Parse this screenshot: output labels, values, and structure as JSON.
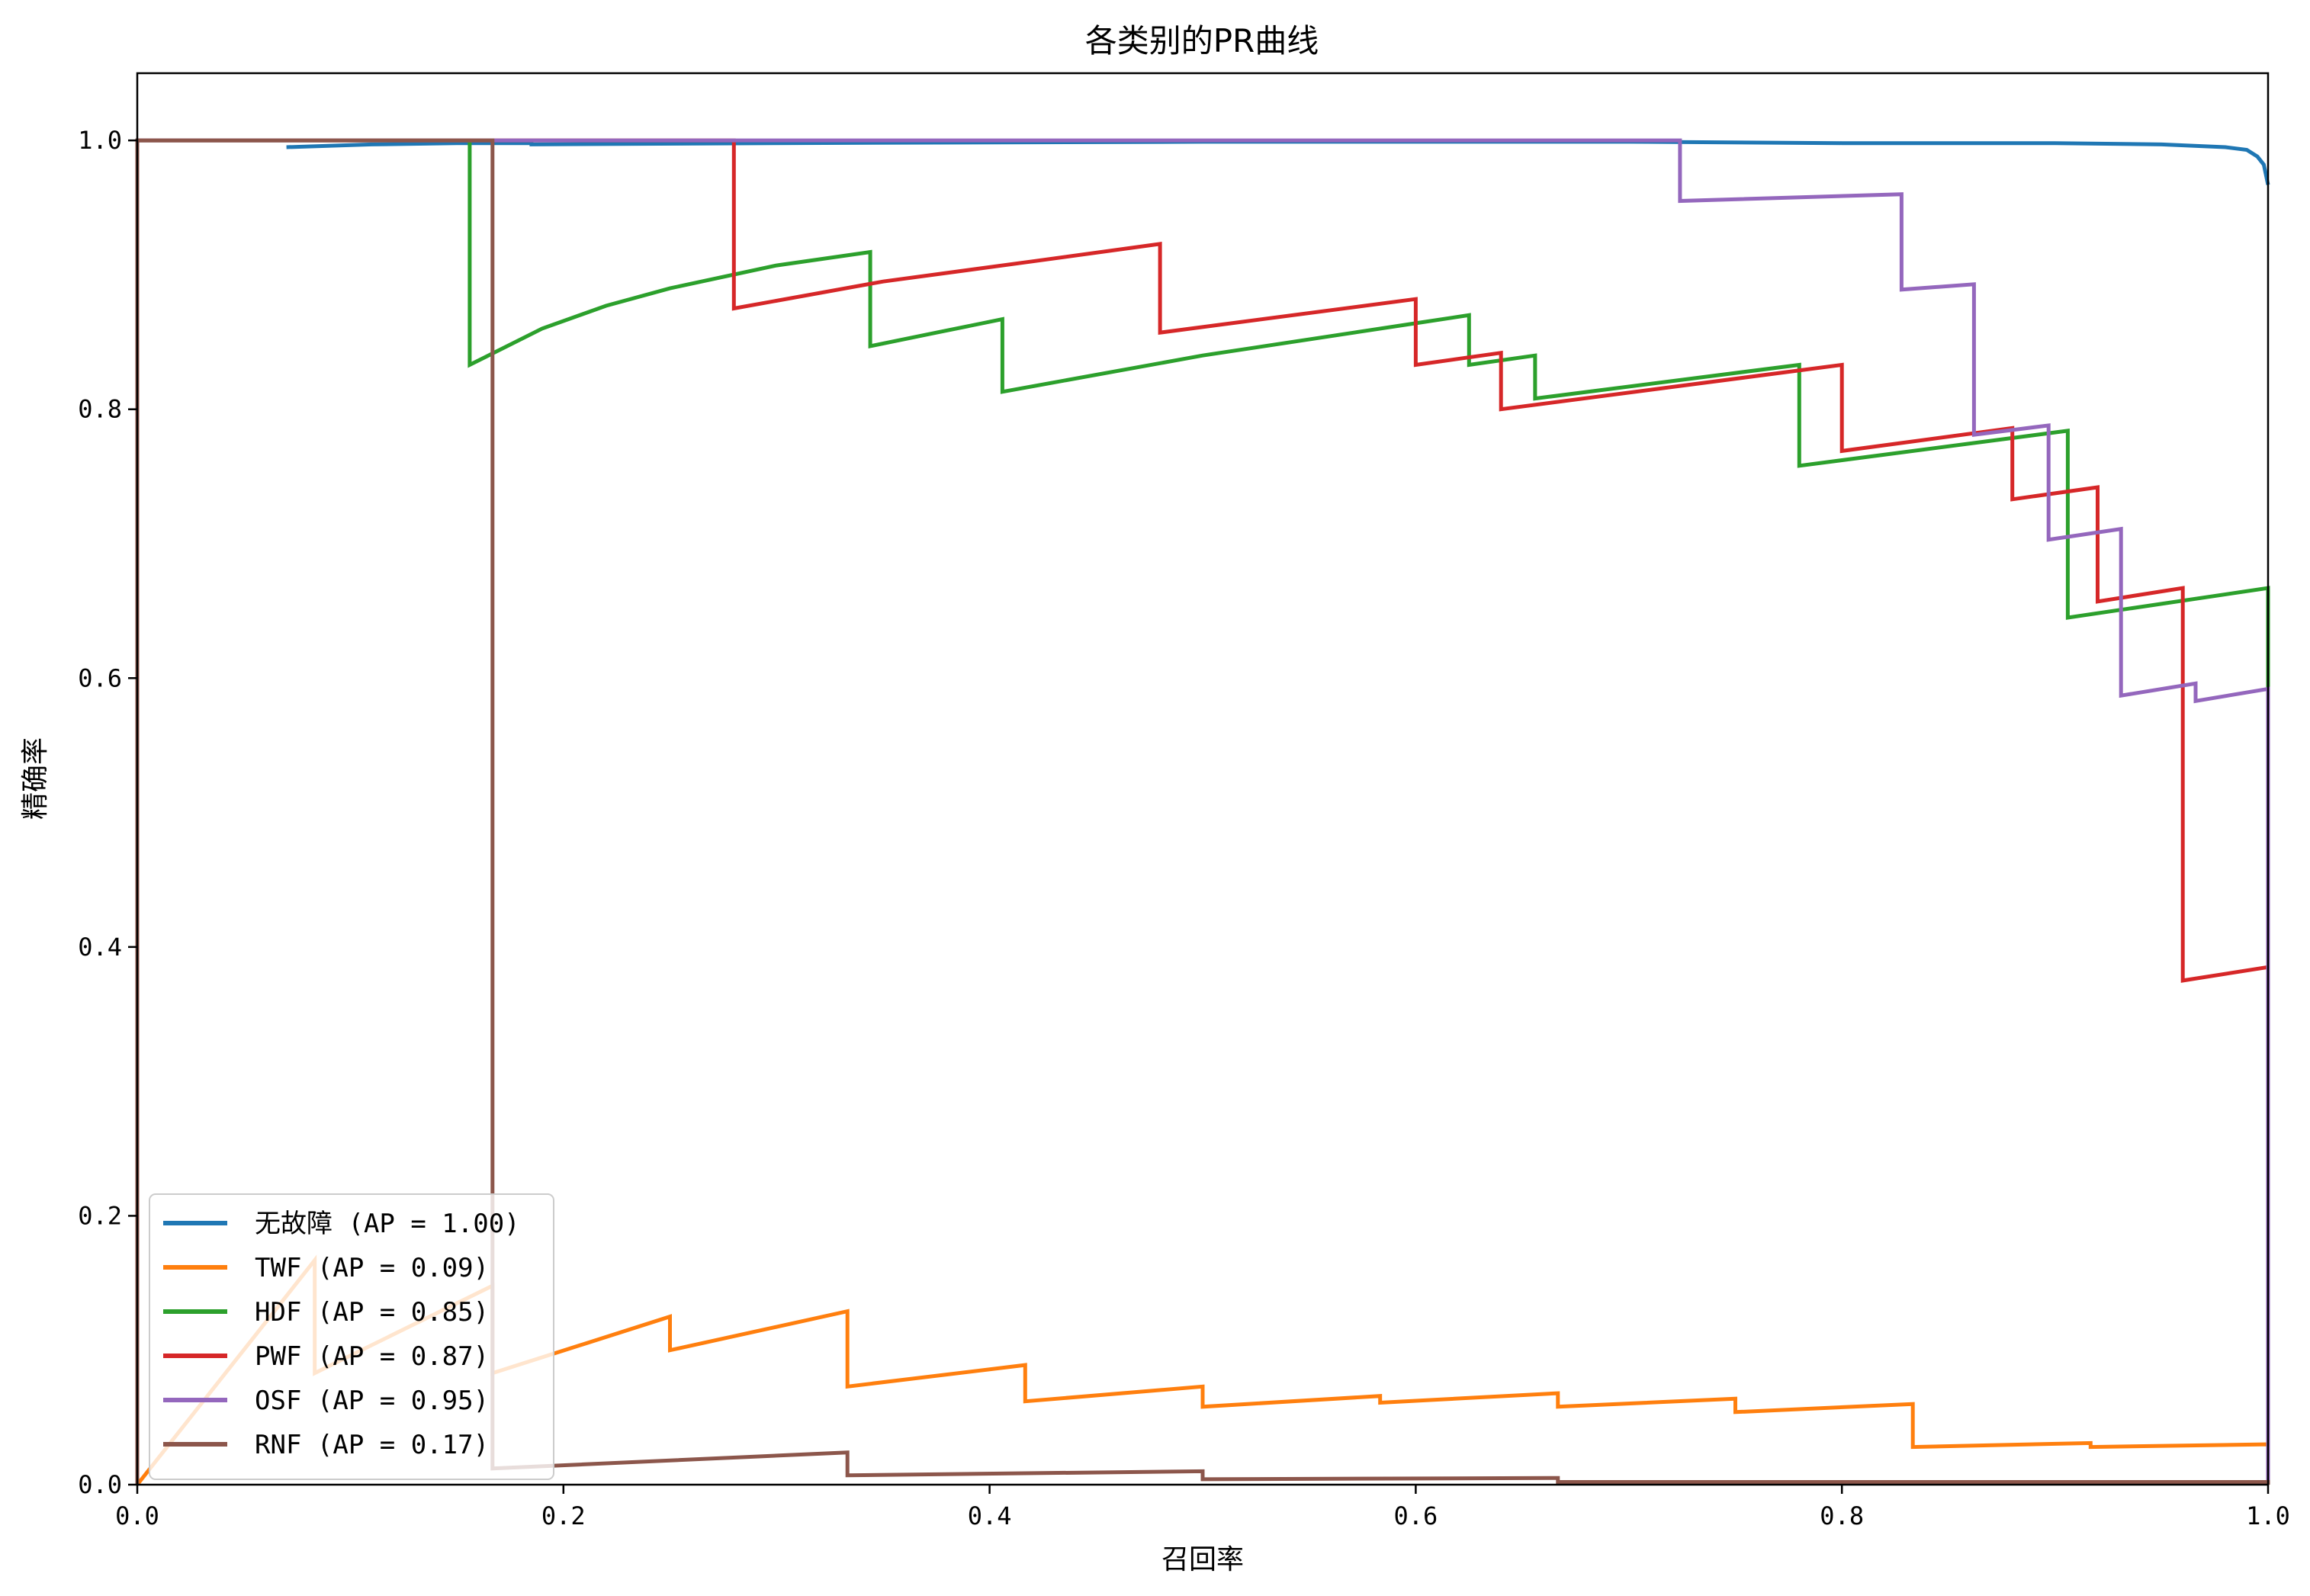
{
  "chart_data": {
    "type": "line",
    "title": "各类别的PR曲线",
    "xlabel": "召回率",
    "ylabel": "精确率",
    "xlim": [
      0.0,
      1.0
    ],
    "ylim": [
      0.0,
      1.05
    ],
    "xticks": [
      "0.0",
      "0.2",
      "0.4",
      "0.6",
      "0.8",
      "1.0"
    ],
    "yticks": [
      "0.0",
      "0.2",
      "0.4",
      "0.6",
      "0.8",
      "1.0"
    ],
    "grid": false,
    "legend_position": "lower-left",
    "series": [
      {
        "name": "无故障 (AP = 1.00)",
        "color": "#1f77b4",
        "x": [
          0.07,
          0.11,
          0.15,
          0.185,
          0.185,
          0.3,
          0.5,
          0.55,
          0.7,
          0.8,
          0.9,
          0.95,
          0.98,
          0.99,
          0.995,
          0.998,
          1.0
        ],
        "y": [
          0.995,
          0.997,
          0.998,
          0.998,
          0.997,
          0.998,
          0.999,
          0.999,
          0.999,
          0.998,
          0.998,
          0.997,
          0.995,
          0.993,
          0.988,
          0.982,
          0.967
        ]
      },
      {
        "name": "TWF (AP = 0.09)",
        "color": "#ff7f0e",
        "x": [
          0.0,
          0.0833,
          0.0833,
          0.1667,
          0.1667,
          0.25,
          0.25,
          0.3333,
          0.3333,
          0.4167,
          0.4167,
          0.5,
          0.5,
          0.5833,
          0.5833,
          0.6667,
          0.6667,
          0.75,
          0.75,
          0.8333,
          0.8333,
          0.9167,
          0.9167,
          1.0,
          1.0
        ],
        "y": [
          0.0,
          0.167,
          0.083,
          0.148,
          0.083,
          0.125,
          0.1,
          0.129,
          0.073,
          0.089,
          0.062,
          0.073,
          0.058,
          0.066,
          0.061,
          0.068,
          0.058,
          0.064,
          0.054,
          0.06,
          0.028,
          0.031,
          0.028,
          0.03,
          0.0
        ]
      },
      {
        "name": "HDF (AP = 0.85)",
        "color": "#2ca02c",
        "x": [
          0.0,
          0.0,
          0.156,
          0.156,
          0.19,
          0.22,
          0.25,
          0.3,
          0.344,
          0.344,
          0.375,
          0.406,
          0.406,
          0.5,
          0.6,
          0.625,
          0.625,
          0.656,
          0.656,
          0.78,
          0.78,
          0.906,
          0.906,
          1.0,
          1.0
        ],
        "y": [
          0.0,
          1.0,
          1.0,
          0.833,
          0.86,
          0.877,
          0.89,
          0.907,
          0.917,
          0.847,
          0.857,
          0.867,
          0.813,
          0.84,
          0.864,
          0.87,
          0.833,
          0.84,
          0.808,
          0.833,
          0.758,
          0.784,
          0.645,
          0.667,
          0.0
        ]
      },
      {
        "name": "PWF (AP = 0.87)",
        "color": "#d62728",
        "x": [
          0.0,
          0.0,
          0.28,
          0.28,
          0.35,
          0.42,
          0.48,
          0.48,
          0.6,
          0.6,
          0.64,
          0.64,
          0.8,
          0.8,
          0.88,
          0.88,
          0.92,
          0.92,
          0.96,
          0.96,
          1.0,
          1.0
        ],
        "y": [
          0.0,
          1.0,
          1.0,
          0.875,
          0.895,
          0.91,
          0.923,
          0.857,
          0.882,
          0.833,
          0.842,
          0.8,
          0.833,
          0.769,
          0.786,
          0.733,
          0.742,
          0.657,
          0.667,
          0.375,
          0.385,
          0.0
        ]
      },
      {
        "name": "OSF (AP = 0.95)",
        "color": "#9467bd",
        "x": [
          0.0,
          0.0,
          0.724,
          0.724,
          0.828,
          0.828,
          0.862,
          0.862,
          0.897,
          0.897,
          0.931,
          0.931,
          0.966,
          0.966,
          1.0,
          1.0
        ],
        "y": [
          0.0,
          1.0,
          1.0,
          0.955,
          0.96,
          0.889,
          0.893,
          0.781,
          0.788,
          0.703,
          0.711,
          0.587,
          0.596,
          0.583,
          0.592,
          0.0
        ]
      },
      {
        "name": "RNF (AP = 0.17)",
        "color": "#8c564b",
        "x": [
          0.0,
          0.0,
          0.1667,
          0.1667,
          0.3333,
          0.3333,
          0.5,
          0.5,
          0.6667,
          0.6667,
          0.8333,
          1.0,
          1.0
        ],
        "y": [
          0.0,
          1.0,
          1.0,
          0.012,
          0.024,
          0.007,
          0.01,
          0.004,
          0.005,
          0.002,
          0.002,
          0.002,
          0.0
        ]
      }
    ]
  }
}
